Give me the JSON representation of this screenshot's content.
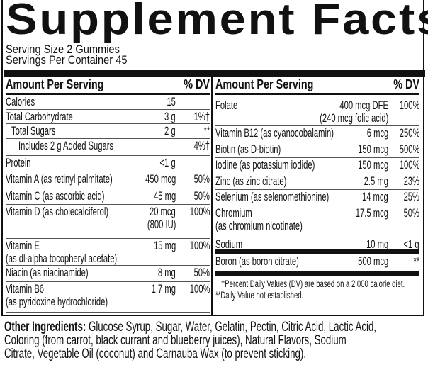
{
  "title": "Supplement Facts",
  "serving_size": "Serving Size 2 Gummies",
  "servings_per_container": "Servings Per Container 45",
  "header": {
    "amount": "Amount Per Serving",
    "dv": "% DV"
  },
  "left_rows": [
    {
      "name": "Calories",
      "amount": "15",
      "dv": ""
    },
    {
      "name": "Total Carbohydrate",
      "amount": "3 g",
      "dv": "1%†"
    },
    {
      "name": "Total Sugars",
      "amount": "2 g",
      "dv": "**"
    },
    {
      "name": "Includes 2 g Added Sugars",
      "amount": "",
      "dv": "4%†"
    },
    {
      "name": "Protein",
      "amount": "<1 g",
      "dv": ""
    },
    {
      "name": "Vitamin A (as retinyl palmitate)",
      "amount": "450 mcg",
      "dv": "50%"
    },
    {
      "name": "Vitamin C (as ascorbic acid)",
      "amount": "45 mg",
      "dv": "50%"
    },
    {
      "name": "Vitamin D (as cholecalciferol)",
      "amount": "20 mcg",
      "amount2": "(800 IU)",
      "dv": "100%"
    },
    {
      "name": "Vitamin E",
      "name2": "(as dl-alpha tocopheryl acetate)",
      "amount": "15 mg",
      "dv": "100%"
    },
    {
      "name": "Niacin (as niacinamide)",
      "amount": "8 mg",
      "dv": "50%"
    },
    {
      "name": "Vitamin B6",
      "name2": "(as pyridoxine hydrochloride)",
      "amount": "1.7 mg",
      "dv": "100%"
    }
  ],
  "right_rows": [
    {
      "name": "Folate",
      "amount": "400 mcg DFE",
      "amount2": "(240 mcg folic acid)",
      "dv": "100%"
    },
    {
      "name": "Vitamin B12 (as cyanocobalamin)",
      "amount": "6 mcg",
      "dv": "250%"
    },
    {
      "name": "Biotin (as D-biotin)",
      "amount": "150 mcg",
      "dv": "500%"
    },
    {
      "name": "Iodine (as potassium iodide)",
      "amount": "150 mcg",
      "dv": "100%"
    },
    {
      "name": "Zinc (as zinc citrate)",
      "amount": "2.5 mg",
      "dv": "23%"
    },
    {
      "name": "Selenium (as selenomethionine)",
      "amount": "14 mcg",
      "dv": "25%"
    },
    {
      "name": "Chromium",
      "name2": "(as chromium nicotinate)",
      "amount": "17.5 mcg",
      "dv": "50%"
    },
    {
      "name": "Sodium",
      "amount": "10 mg",
      "dv": "<1 g"
    },
    {
      "name": "Boron (as boron citrate)",
      "amount": "500 mcg",
      "dv": "**"
    }
  ],
  "footnotes": [
    "†Percent Daily Values (DV) are based on a 2,000 calorie diet.",
    "**Daily Value not established."
  ],
  "other_ingredients": {
    "label": "Other Ingredients:",
    "lines": [
      " Glucose Syrup, Sugar, Water, Gelatin, Pectin, Citric Acid, Lactic Acid,",
      "Coloring (from carrot, black currant and blueberry juices), Natural Flavors, Sodium",
      "Citrate, Vegetable Oil (coconut) and Carnauba Wax (to prevent sticking)."
    ]
  }
}
